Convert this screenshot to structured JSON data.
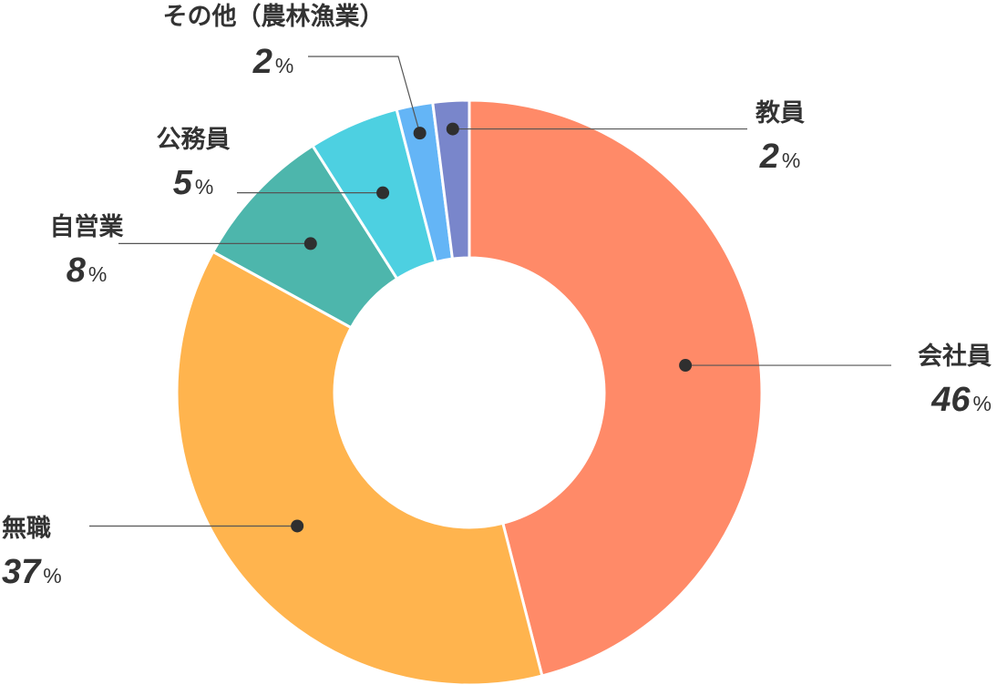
{
  "chart_data": {
    "type": "pie",
    "donut": true,
    "categories": [
      "会社員",
      "無職",
      "自営業",
      "公務員",
      "その他（農林漁業）",
      "教員"
    ],
    "values": [
      46,
      37,
      8,
      5,
      2,
      2
    ],
    "number_labels": [
      "46",
      "37",
      "8",
      "5",
      "2",
      "2"
    ],
    "percent_sign": "%",
    "colors": [
      "#FF8A68",
      "#FFB44E",
      "#4DB6AC",
      "#4DD0E1",
      "#64B5F6",
      "#7986CB"
    ],
    "start": "12 o'clock",
    "direction": "clockwise",
    "legend": "none",
    "title": ""
  }
}
